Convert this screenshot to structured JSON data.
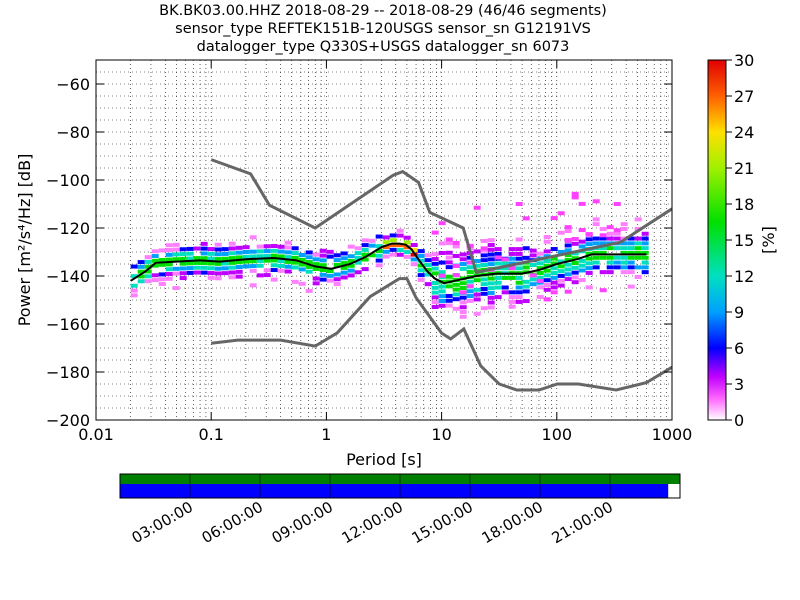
{
  "header": {
    "line1": "BK.BK03.00.HHZ   2018-08-29 -- 2018-08-29  (46/46 segments)",
    "line2": "sensor_type REFTEK151B-120USGS sensor_sn G12191VS",
    "line3": "datalogger_type Q330S+USGS datalogger_sn 6073"
  },
  "chart_data": {
    "type": "heatmap",
    "title": "BK.BK03.00.HHZ   2018-08-29 -- 2018-08-29  (46/46 segments)",
    "xlabel": "Period [s]",
    "ylabel": "Power [m²/s⁴/Hz] [dB]",
    "xscale": "log",
    "xlim": [
      0.01,
      1000
    ],
    "ylim": [
      -200,
      -50
    ],
    "xticks": [
      0.01,
      0.1,
      1,
      10,
      100,
      1000
    ],
    "xtick_labels": [
      "0.01",
      "0.1",
      "1",
      "10",
      "100",
      "1000"
    ],
    "yticks": [
      -60,
      -80,
      -100,
      -120,
      -140,
      -160,
      -180,
      -200
    ],
    "ytick_labels": [
      "−60",
      "−80",
      "−100",
      "−120",
      "−140",
      "−160",
      "−180",
      "−200"
    ],
    "grid": true,
    "colorbar": {
      "label": "[%]",
      "range": [
        0,
        30
      ],
      "ticks": [
        0,
        3,
        6,
        9,
        12,
        15,
        18,
        21,
        24,
        27,
        30
      ],
      "tick_labels": [
        "0",
        "3",
        "6",
        "9",
        "12",
        "15",
        "18",
        "21",
        "24",
        "27",
        "30"
      ]
    },
    "noise_model_high": {
      "period": [
        0.1,
        0.22,
        0.32,
        0.8,
        3.8,
        4.6,
        6.3,
        7.9,
        15.4,
        20,
        354.8,
        1000
      ],
      "power": [
        -91.5,
        -97.4,
        -110.5,
        -120,
        -98,
        -96.5,
        -101,
        -113.5,
        -120,
        -138.5,
        -126,
        -112
      ]
    },
    "noise_model_low": {
      "period": [
        0.1,
        0.17,
        0.4,
        0.8,
        1.24,
        2.4,
        4.3,
        5.0,
        6.0,
        10.0,
        12.0,
        15.6,
        21.9,
        31.6,
        45,
        70,
        101,
        154,
        328,
        600,
        1000
      ],
      "power": [
        -168,
        -166.7,
        -166.7,
        -169.2,
        -163.7,
        -148.6,
        -141.1,
        -141.1,
        -149,
        -163.8,
        -166.2,
        -162.1,
        -177.5,
        -185,
        -187.5,
        -187.5,
        -185,
        -185,
        -187.5,
        -184.4,
        -178
      ]
    },
    "mode_curve": {
      "period": [
        0.02,
        0.027,
        0.033,
        0.05,
        0.08,
        0.12,
        0.2,
        0.35,
        0.55,
        0.8,
        1.1,
        1.6,
        2.2,
        3.0,
        3.7,
        4.3,
        4.9,
        5.5,
        6.5,
        7.5,
        8.7,
        10.5,
        13,
        20,
        30,
        50,
        70,
        100,
        150,
        200,
        350,
        600
      ],
      "power": [
        -142,
        -138,
        -134.5,
        -134,
        -133.5,
        -134,
        -133,
        -132.5,
        -133.5,
        -136,
        -137,
        -135,
        -132,
        -128,
        -126.5,
        -126.5,
        -127,
        -129,
        -134,
        -138,
        -141,
        -143,
        -142,
        -140,
        -139,
        -139,
        -137.5,
        -135,
        -133,
        -131,
        -131,
        -131
      ]
    },
    "timeline": {
      "tick_labels": [
        "03:00:00",
        "06:00:00",
        "09:00:00",
        "12:00:00",
        "15:00:00",
        "18:00:00",
        "21:00:00"
      ],
      "segments_available": 46,
      "segments_total": 46,
      "coverage_fraction": 0.979,
      "data_color": "#0000ff",
      "available_color": "#008000"
    }
  }
}
